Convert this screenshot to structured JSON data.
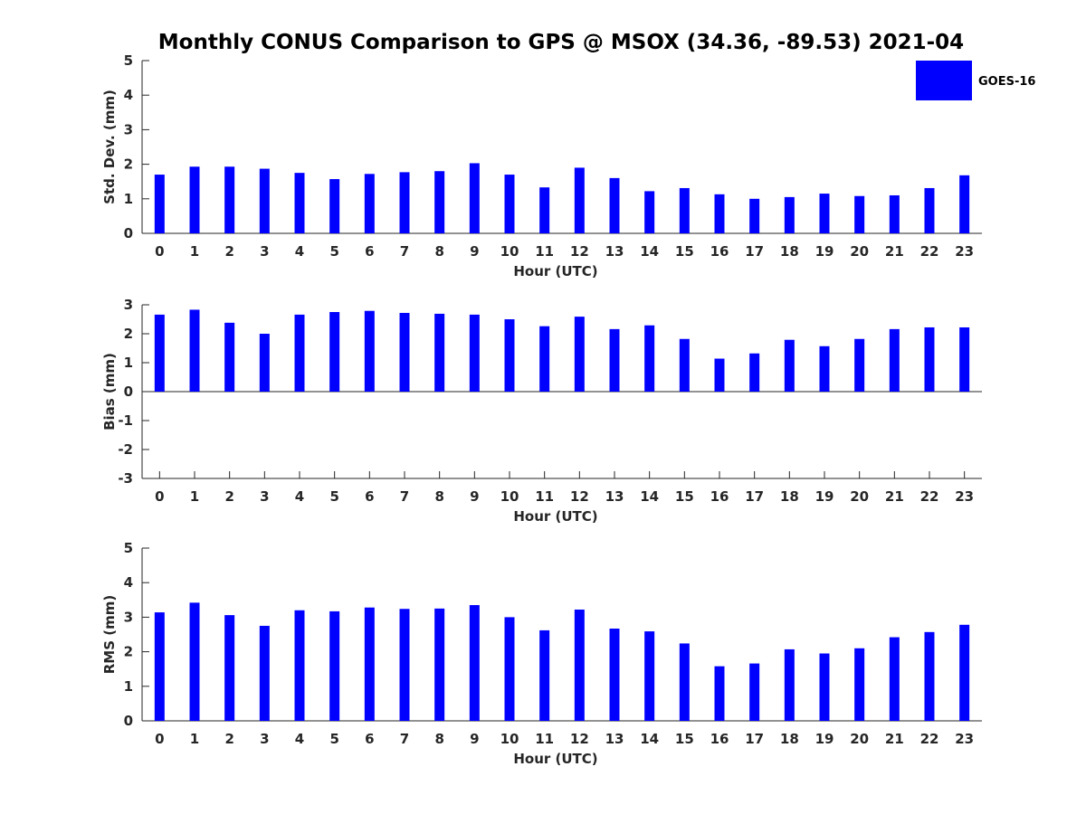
{
  "chart_data": {
    "type": "bar",
    "title": "Monthly CONUS Comparison to GPS @ MSOX (34.36, -89.53) 2021-04",
    "legend": {
      "entries": [
        "GOES-16"
      ],
      "placement": "top-right"
    },
    "color": "#0000ff",
    "categories": [
      "0",
      "1",
      "2",
      "3",
      "4",
      "5",
      "6",
      "7",
      "8",
      "9",
      "10",
      "11",
      "12",
      "13",
      "14",
      "15",
      "16",
      "17",
      "18",
      "19",
      "20",
      "21",
      "22",
      "23"
    ],
    "panels": [
      {
        "name": "std",
        "xlabel": "Hour (UTC)",
        "ylabel": "Std. Dev. (mm)",
        "ylim": [
          0,
          5
        ],
        "yticks": [
          "0",
          "1",
          "2",
          "3",
          "4",
          "5"
        ],
        "series": [
          {
            "name": "GOES-16",
            "values": [
              1.7,
              1.93,
              1.93,
              1.87,
              1.75,
              1.57,
              1.72,
              1.77,
              1.8,
              2.03,
              1.7,
              1.33,
              1.9,
              1.6,
              1.22,
              1.31,
              1.13,
              1.0,
              1.05,
              1.15,
              1.08,
              1.1,
              1.31,
              1.68
            ]
          }
        ]
      },
      {
        "name": "bias",
        "xlabel": "Hour (UTC)",
        "ylabel": "Bias (mm)",
        "ylim": [
          -3,
          3
        ],
        "yticks": [
          "-3",
          "-2",
          "-1",
          "0",
          "1",
          "2",
          "3"
        ],
        "series": [
          {
            "name": "GOES-16",
            "values": [
              2.66,
              2.83,
              2.38,
              2.0,
              2.66,
              2.75,
              2.79,
              2.72,
              2.69,
              2.66,
              2.5,
              2.26,
              2.59,
              2.16,
              2.29,
              1.82,
              1.14,
              1.32,
              1.79,
              1.57,
              1.82,
              2.16,
              2.22,
              2.22
            ]
          }
        ]
      },
      {
        "name": "rms",
        "xlabel": "Hour (UTC)",
        "ylabel": "RMS (mm)",
        "ylim": [
          0,
          5
        ],
        "yticks": [
          "0",
          "1",
          "2",
          "3",
          "4",
          "5"
        ],
        "series": [
          {
            "name": "GOES-16",
            "values": [
              3.14,
              3.42,
              3.06,
              2.75,
              3.2,
              3.17,
              3.28,
              3.24,
              3.25,
              3.35,
              3.0,
              2.62,
              3.22,
              2.67,
              2.59,
              2.24,
              1.58,
              1.66,
              2.07,
              1.95,
              2.1,
              2.42,
              2.57,
              2.78
            ]
          }
        ]
      }
    ]
  }
}
